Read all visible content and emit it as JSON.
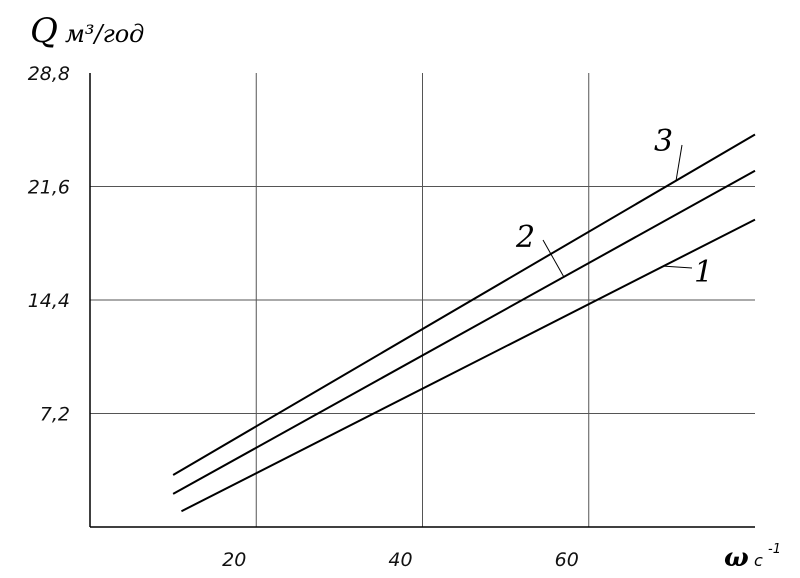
{
  "chart_data": {
    "type": "line",
    "ylabel": "Q",
    "ylabel_unit": "м³/год",
    "xlabel": "ω",
    "xlabel_unit": "с",
    "xlabel_unit_exp": "-1",
    "xlim": [
      0,
      80
    ],
    "ylim": [
      0,
      28.8
    ],
    "x_ticks": [
      20,
      40,
      60
    ],
    "x_tick_labels": [
      "20",
      "40",
      "60"
    ],
    "y_ticks": [
      7.2,
      14.4,
      21.6,
      28.8
    ],
    "y_tick_labels": [
      "7,2",
      "14,4",
      "21,6",
      "28,8"
    ],
    "grid": true,
    "series": [
      {
        "name": "1",
        "x": [
          11,
          80
        ],
        "y": [
          1.0,
          19.5
        ]
      },
      {
        "name": "2",
        "x": [
          10,
          80
        ],
        "y": [
          2.1,
          22.6
        ]
      },
      {
        "name": "3",
        "x": [
          10,
          80
        ],
        "y": [
          3.3,
          24.9
        ]
      }
    ]
  }
}
